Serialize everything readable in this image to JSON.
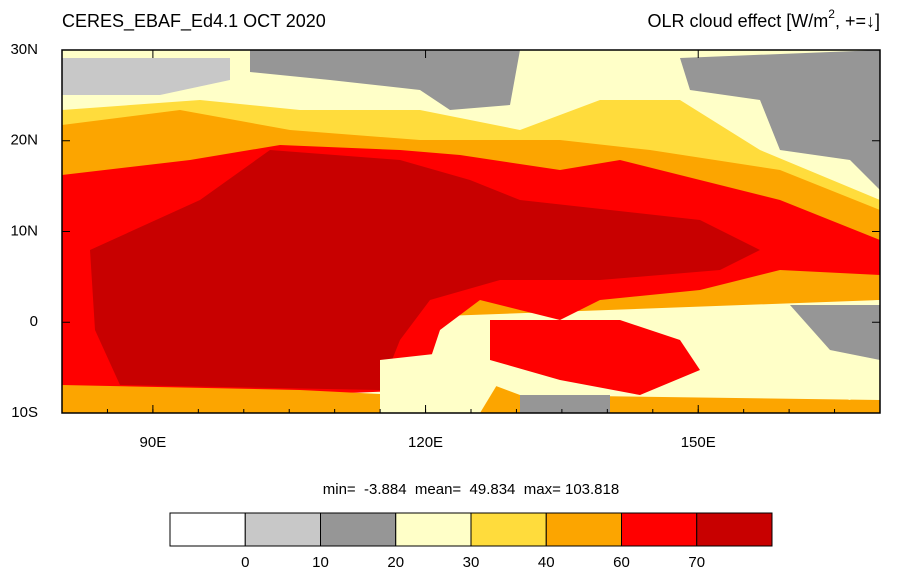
{
  "chart_data": {
    "type": "map",
    "title_left": "CERES_EBAF_Ed4.1 OCT 2020",
    "title_right": [
      "OLR cloud effect [W/m",
      "2",
      ", +=↓]"
    ],
    "xlim": [
      80,
      170
    ],
    "ylim": [
      -10,
      30
    ],
    "xticks": [
      {
        "value": 90,
        "label": "90E"
      },
      {
        "value": 120,
        "label": "120E"
      },
      {
        "value": 150,
        "label": "150E"
      }
    ],
    "yticks": [
      {
        "value": 30,
        "label": "30N"
      },
      {
        "value": 20,
        "label": "20N"
      },
      {
        "value": 10,
        "label": "10N"
      },
      {
        "value": 0,
        "label": "0"
      },
      {
        "value": -10,
        "label": "10S"
      }
    ],
    "stats": "min=  -3.884  mean=  49.834  max= 103.818",
    "colorbar": {
      "levels": [
        0,
        10,
        20,
        30,
        40,
        60,
        70
      ],
      "colors": [
        "#ffffff",
        "#c8c8c8",
        "#969696",
        "#ffffc8",
        "#ffdc3c",
        "#fca500",
        "#ff0000",
        "#c80000"
      ]
    }
  }
}
